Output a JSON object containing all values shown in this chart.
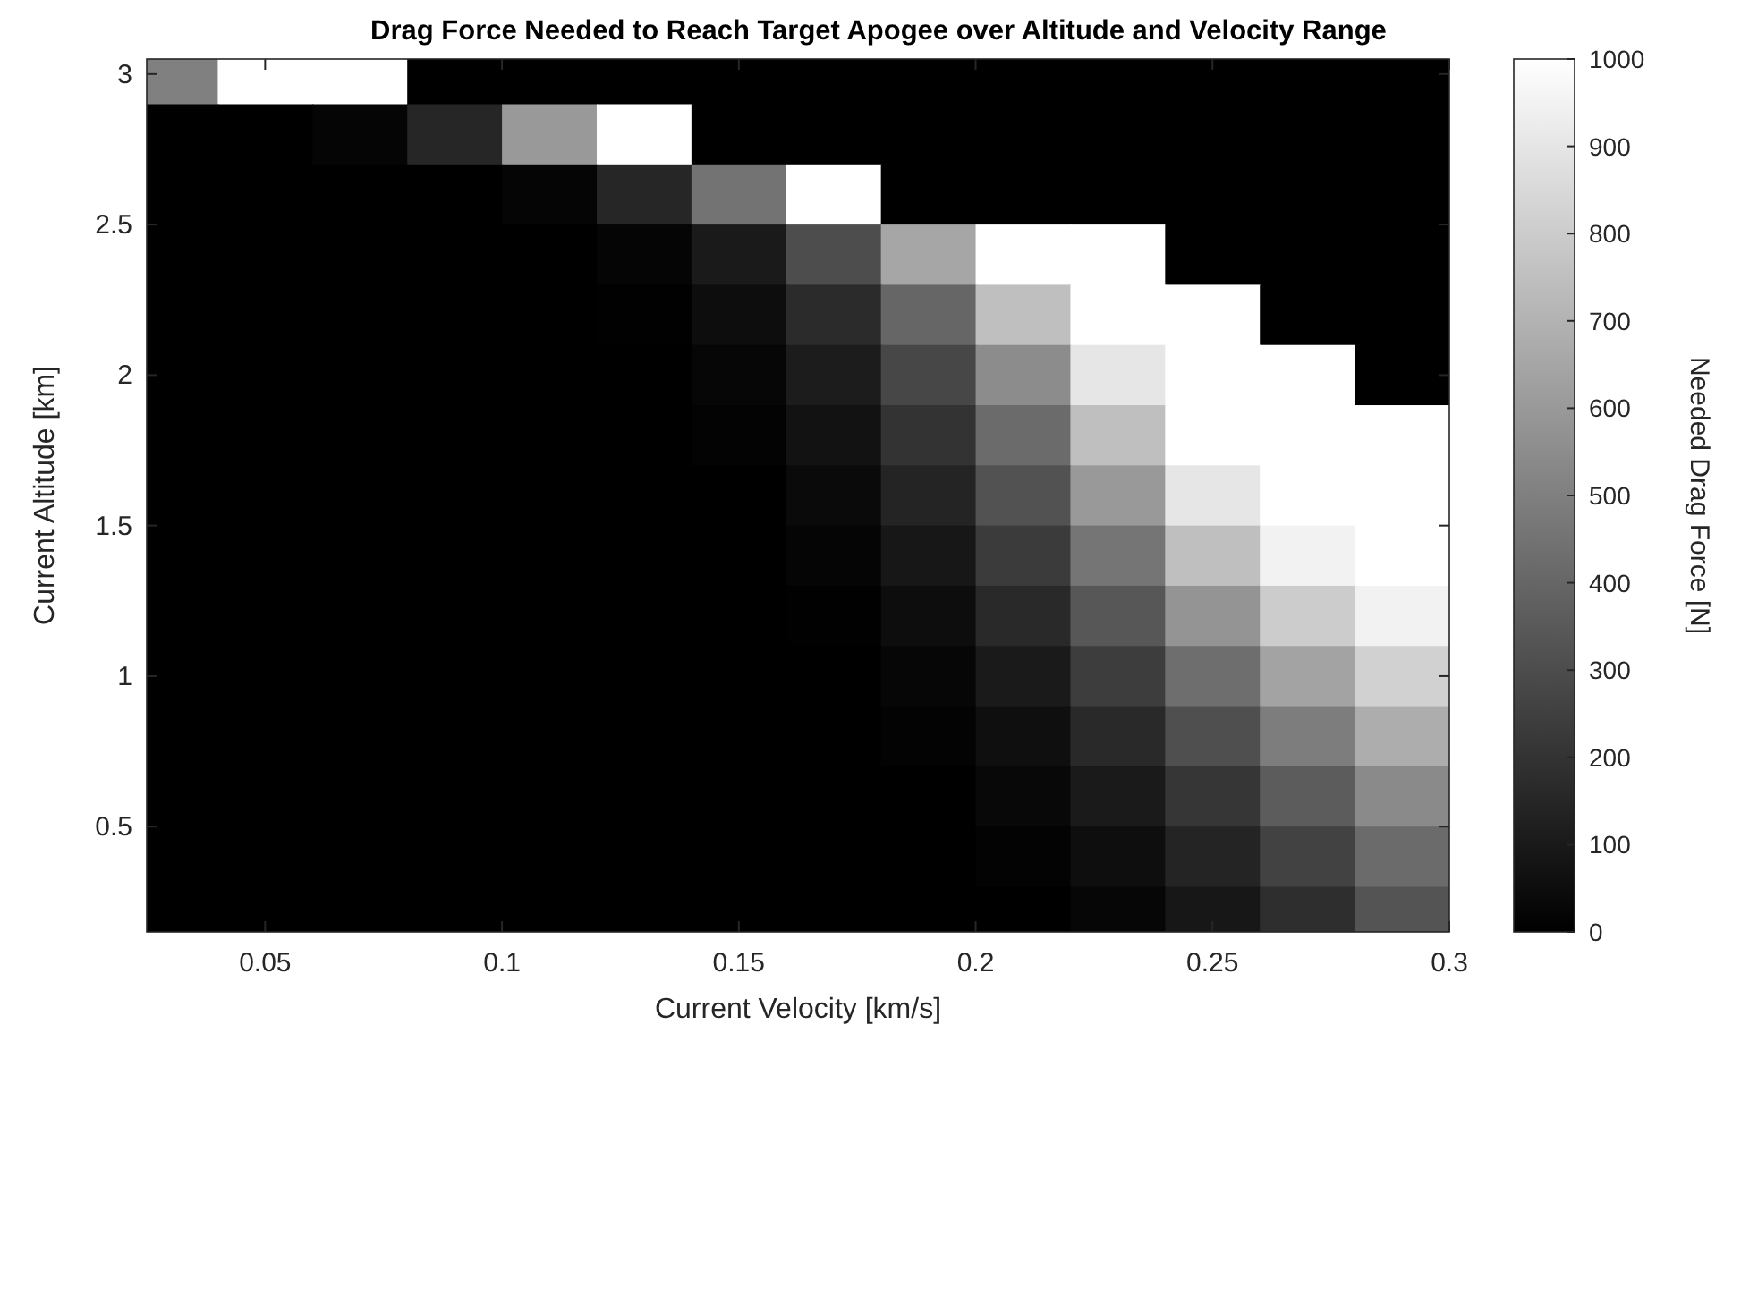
{
  "chart_data": {
    "type": "heatmap",
    "title": "Drag Force Needed to Reach Target Apogee over Altitude and Velocity Range",
    "xlabel": "Current Velocity [km/s]",
    "ylabel": "Current Altitude [km]",
    "clabel": "Needed Drag Force [N]",
    "xlim": [
      0.025,
      0.3
    ],
    "ylim": [
      0.15,
      3.05
    ],
    "xticks": [
      0.05,
      0.1,
      0.15,
      0.2,
      0.25,
      0.3
    ],
    "yticks": [
      0.5,
      1,
      1.5,
      2,
      2.5,
      3
    ],
    "clim": [
      0,
      1000
    ],
    "cticks": [
      0,
      100,
      200,
      300,
      400,
      500,
      600,
      700,
      800,
      900,
      1000
    ],
    "x": [
      0.03,
      0.05,
      0.07,
      0.09,
      0.11,
      0.13,
      0.15,
      0.17,
      0.19,
      0.21,
      0.23,
      0.25,
      0.27,
      0.29
    ],
    "y": [
      3.0,
      2.8,
      2.6,
      2.4,
      2.2,
      2.0,
      1.8,
      1.6,
      1.4,
      1.2,
      1.0,
      0.8,
      0.6,
      0.4,
      0.2
    ],
    "cells": [
      [
        500,
        1000,
        1000,
        0,
        0,
        0,
        0,
        0,
        0,
        0,
        0,
        0,
        0,
        0
      ],
      [
        0,
        0,
        20,
        150,
        600,
        1000,
        0,
        0,
        0,
        0,
        0,
        0,
        0,
        0
      ],
      [
        0,
        0,
        0,
        0,
        20,
        150,
        450,
        1000,
        0,
        0,
        0,
        0,
        0,
        0
      ],
      [
        0,
        0,
        0,
        0,
        0,
        20,
        100,
        300,
        650,
        1000,
        1000,
        0,
        0,
        0
      ],
      [
        0,
        0,
        0,
        0,
        0,
        5,
        50,
        170,
        400,
        750,
        1000,
        1000,
        0,
        0
      ],
      [
        0,
        0,
        0,
        0,
        0,
        0,
        25,
        110,
        280,
        550,
        900,
        1000,
        1000,
        0
      ],
      [
        0,
        0,
        0,
        0,
        0,
        0,
        10,
        70,
        200,
        420,
        750,
        1000,
        1000,
        1000
      ],
      [
        0,
        0,
        0,
        0,
        0,
        0,
        0,
        40,
        140,
        320,
        600,
        900,
        1000,
        1000
      ],
      [
        0,
        0,
        0,
        0,
        0,
        0,
        0,
        20,
        90,
        230,
        460,
        750,
        950,
        1000
      ],
      [
        0,
        0,
        0,
        0,
        0,
        0,
        0,
        5,
        50,
        160,
        340,
        580,
        800,
        950
      ],
      [
        0,
        0,
        0,
        0,
        0,
        0,
        0,
        0,
        25,
        100,
        240,
        430,
        640,
        820
      ],
      [
        0,
        0,
        0,
        0,
        0,
        0,
        0,
        0,
        10,
        60,
        160,
        310,
        490,
        680
      ],
      [
        0,
        0,
        0,
        0,
        0,
        0,
        0,
        0,
        0,
        30,
        100,
        210,
        360,
        540
      ],
      [
        0,
        0,
        0,
        0,
        0,
        0,
        0,
        0,
        0,
        10,
        55,
        140,
        260,
        420
      ],
      [
        0,
        0,
        0,
        0,
        0,
        0,
        0,
        0,
        0,
        0,
        25,
        90,
        180,
        330
      ]
    ]
  }
}
